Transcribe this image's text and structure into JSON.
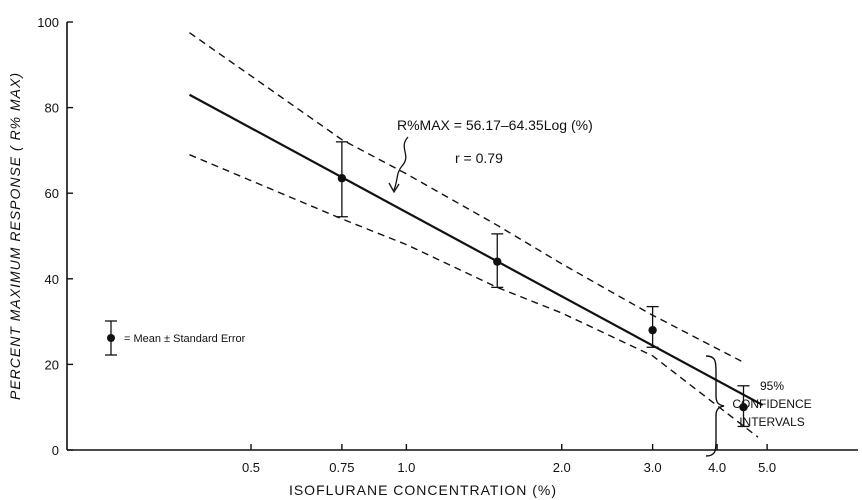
{
  "chart_data": {
    "type": "scatter",
    "xlabel": "ISOFLURANE CONCENTRATION (%)",
    "ylabel": "PERCENT MAXIMUM RESPONSE ( R% MAX)",
    "x_scale": "log",
    "xlim": [
      0.22,
      7.5
    ],
    "ylim": [
      0,
      100
    ],
    "x_ticks": [
      {
        "value": 0.5,
        "label": "0.5"
      },
      {
        "value": 0.75,
        "label": "0.75"
      },
      {
        "value": 1.0,
        "label": "1.0"
      },
      {
        "value": 2.0,
        "label": "2.0"
      },
      {
        "value": 3.0,
        "label": "3.0"
      },
      {
        "value": 4.0,
        "label": "4.0"
      },
      {
        "value": 5.0,
        "label": "5.0"
      }
    ],
    "y_ticks": [
      {
        "value": 0,
        "label": "0"
      },
      {
        "value": 20,
        "label": "20"
      },
      {
        "value": 40,
        "label": "40"
      },
      {
        "value": 60,
        "label": "60"
      },
      {
        "value": 80,
        "label": "80"
      },
      {
        "value": 100,
        "label": "100"
      }
    ],
    "points": [
      {
        "x": 0.75,
        "y": 63.5,
        "err_low": 54.5,
        "err_high": 72.0
      },
      {
        "x": 1.5,
        "y": 44.0,
        "err_low": 38.0,
        "err_high": 50.5
      },
      {
        "x": 3.0,
        "y": 28.0,
        "err_low": 24.0,
        "err_high": 33.5
      },
      {
        "x": 4.5,
        "y": 10.0,
        "err_low": 5.5,
        "err_high": 15.0
      }
    ],
    "regression": {
      "x": [
        0.38,
        4.9
      ],
      "y": [
        83.0,
        10.5
      ]
    },
    "ci_upper": {
      "x": [
        0.38,
        0.75,
        1.0,
        1.5,
        2.0,
        3.0,
        4.5
      ],
      "y": [
        97.5,
        72.5,
        64.5,
        52.5,
        43.5,
        31.5,
        20.5
      ]
    },
    "ci_lower": {
      "x": [
        0.38,
        0.75,
        1.0,
        1.5,
        2.0,
        3.0,
        4.8
      ],
      "y": [
        69.0,
        54.0,
        48.0,
        38.0,
        32.0,
        22.0,
        3.0
      ]
    },
    "annotations": {
      "equation": "R%MAX = 56.17–64.35Log (%)",
      "r_value": "r = 0.79",
      "legend": "= Mean ± Standard Error",
      "ci_label": [
        "95%",
        "CONFIDENCE",
        "INTERVALS"
      ]
    }
  }
}
